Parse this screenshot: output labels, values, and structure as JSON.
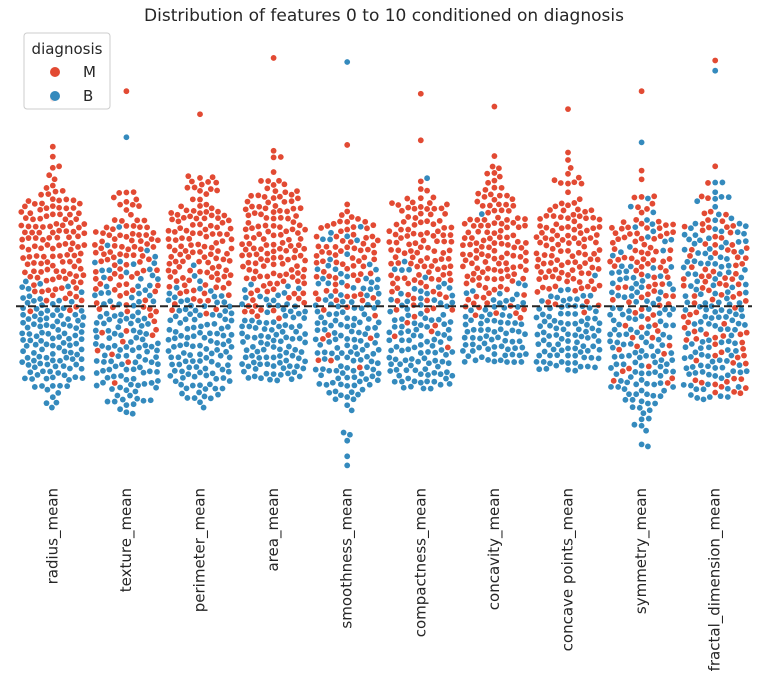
{
  "chart_data": {
    "type": "scatter",
    "subtype": "swarm",
    "title": "Distribution of features 0 to 10 conditioned on diagnosis",
    "xlabel": "",
    "ylabel": "",
    "categories": [
      "radius_mean",
      "texture_mean",
      "perimeter_mean",
      "area_mean",
      "smoothness_mean",
      "compactness_mean",
      "concavity_mean",
      "concave points_mean",
      "symmetry_mean",
      "fractal_dimension_mean"
    ],
    "ylim": [
      -3.2,
      5.2
    ],
    "grid": false,
    "reference_line": {
      "y": 0,
      "style": "dashed",
      "color": "#262626"
    },
    "legend": {
      "title": "diagnosis",
      "placement": "top-left"
    },
    "series": [
      {
        "name": "M",
        "color": "#e24a33",
        "count": 212,
        "summary": {
          "radius_mean": {
            "mean": 1.05,
            "sd": 0.72,
            "min": -0.1,
            "max": 4.05
          },
          "texture_mean": {
            "mean": 0.55,
            "sd": 0.65,
            "min": -1.5,
            "max": 4.2
          },
          "perimeter_mean": {
            "mean": 1.05,
            "sd": 0.72,
            "min": -0.15,
            "max": 3.75
          },
          "area_mean": {
            "mean": 1.0,
            "sd": 0.78,
            "min": -0.25,
            "max": 4.85
          },
          "smoothness_mean": {
            "mean": 0.55,
            "sd": 0.6,
            "min": -1.2,
            "max": 3.15
          },
          "compactness_mean": {
            "mean": 0.75,
            "sd": 0.8,
            "min": -0.95,
            "max": 4.15
          },
          "concavity_mean": {
            "mean": 0.85,
            "sd": 0.8,
            "min": -0.3,
            "max": 3.9
          },
          "concave points_mean": {
            "mean": 1.0,
            "sd": 0.68,
            "min": -0.3,
            "max": 3.85
          },
          "symmetry_mean": {
            "mean": 0.45,
            "sd": 0.8,
            "min": -1.5,
            "max": 4.2
          },
          "fractal_dimension_mean": {
            "mean": 0.0,
            "sd": 0.95,
            "min": -1.7,
            "max": 4.8
          }
        }
      },
      {
        "name": "B",
        "color": "#348abd",
        "count": 357,
        "summary": {
          "radius_mean": {
            "mean": -0.6,
            "sd": 0.48,
            "min": -1.98,
            "max": 0.6
          },
          "texture_mean": {
            "mean": -0.35,
            "sd": 0.7,
            "min": -2.1,
            "max": 3.3
          },
          "perimeter_mean": {
            "mean": -0.6,
            "sd": 0.48,
            "min": -1.98,
            "max": 0.8
          },
          "area_mean": {
            "mean": -0.58,
            "sd": 0.38,
            "min": -1.45,
            "max": 0.55
          },
          "smoothness_mean": {
            "mean": -0.35,
            "sd": 0.8,
            "min": -3.11,
            "max": 4.77
          },
          "compactness_mean": {
            "mean": -0.5,
            "sd": 0.55,
            "min": -1.61,
            "max": 2.5
          },
          "concavity_mean": {
            "mean": -0.55,
            "sd": 0.42,
            "min": -1.11,
            "max": 1.8
          },
          "concave points_mean": {
            "mean": -0.6,
            "sd": 0.4,
            "min": -1.26,
            "max": 0.6
          },
          "symmetry_mean": {
            "mean": -0.35,
            "sd": 0.8,
            "min": -2.74,
            "max": 3.2
          },
          "fractal_dimension_mean": {
            "mean": -0.05,
            "sd": 0.9,
            "min": -1.82,
            "max": 4.6
          }
        }
      }
    ]
  }
}
